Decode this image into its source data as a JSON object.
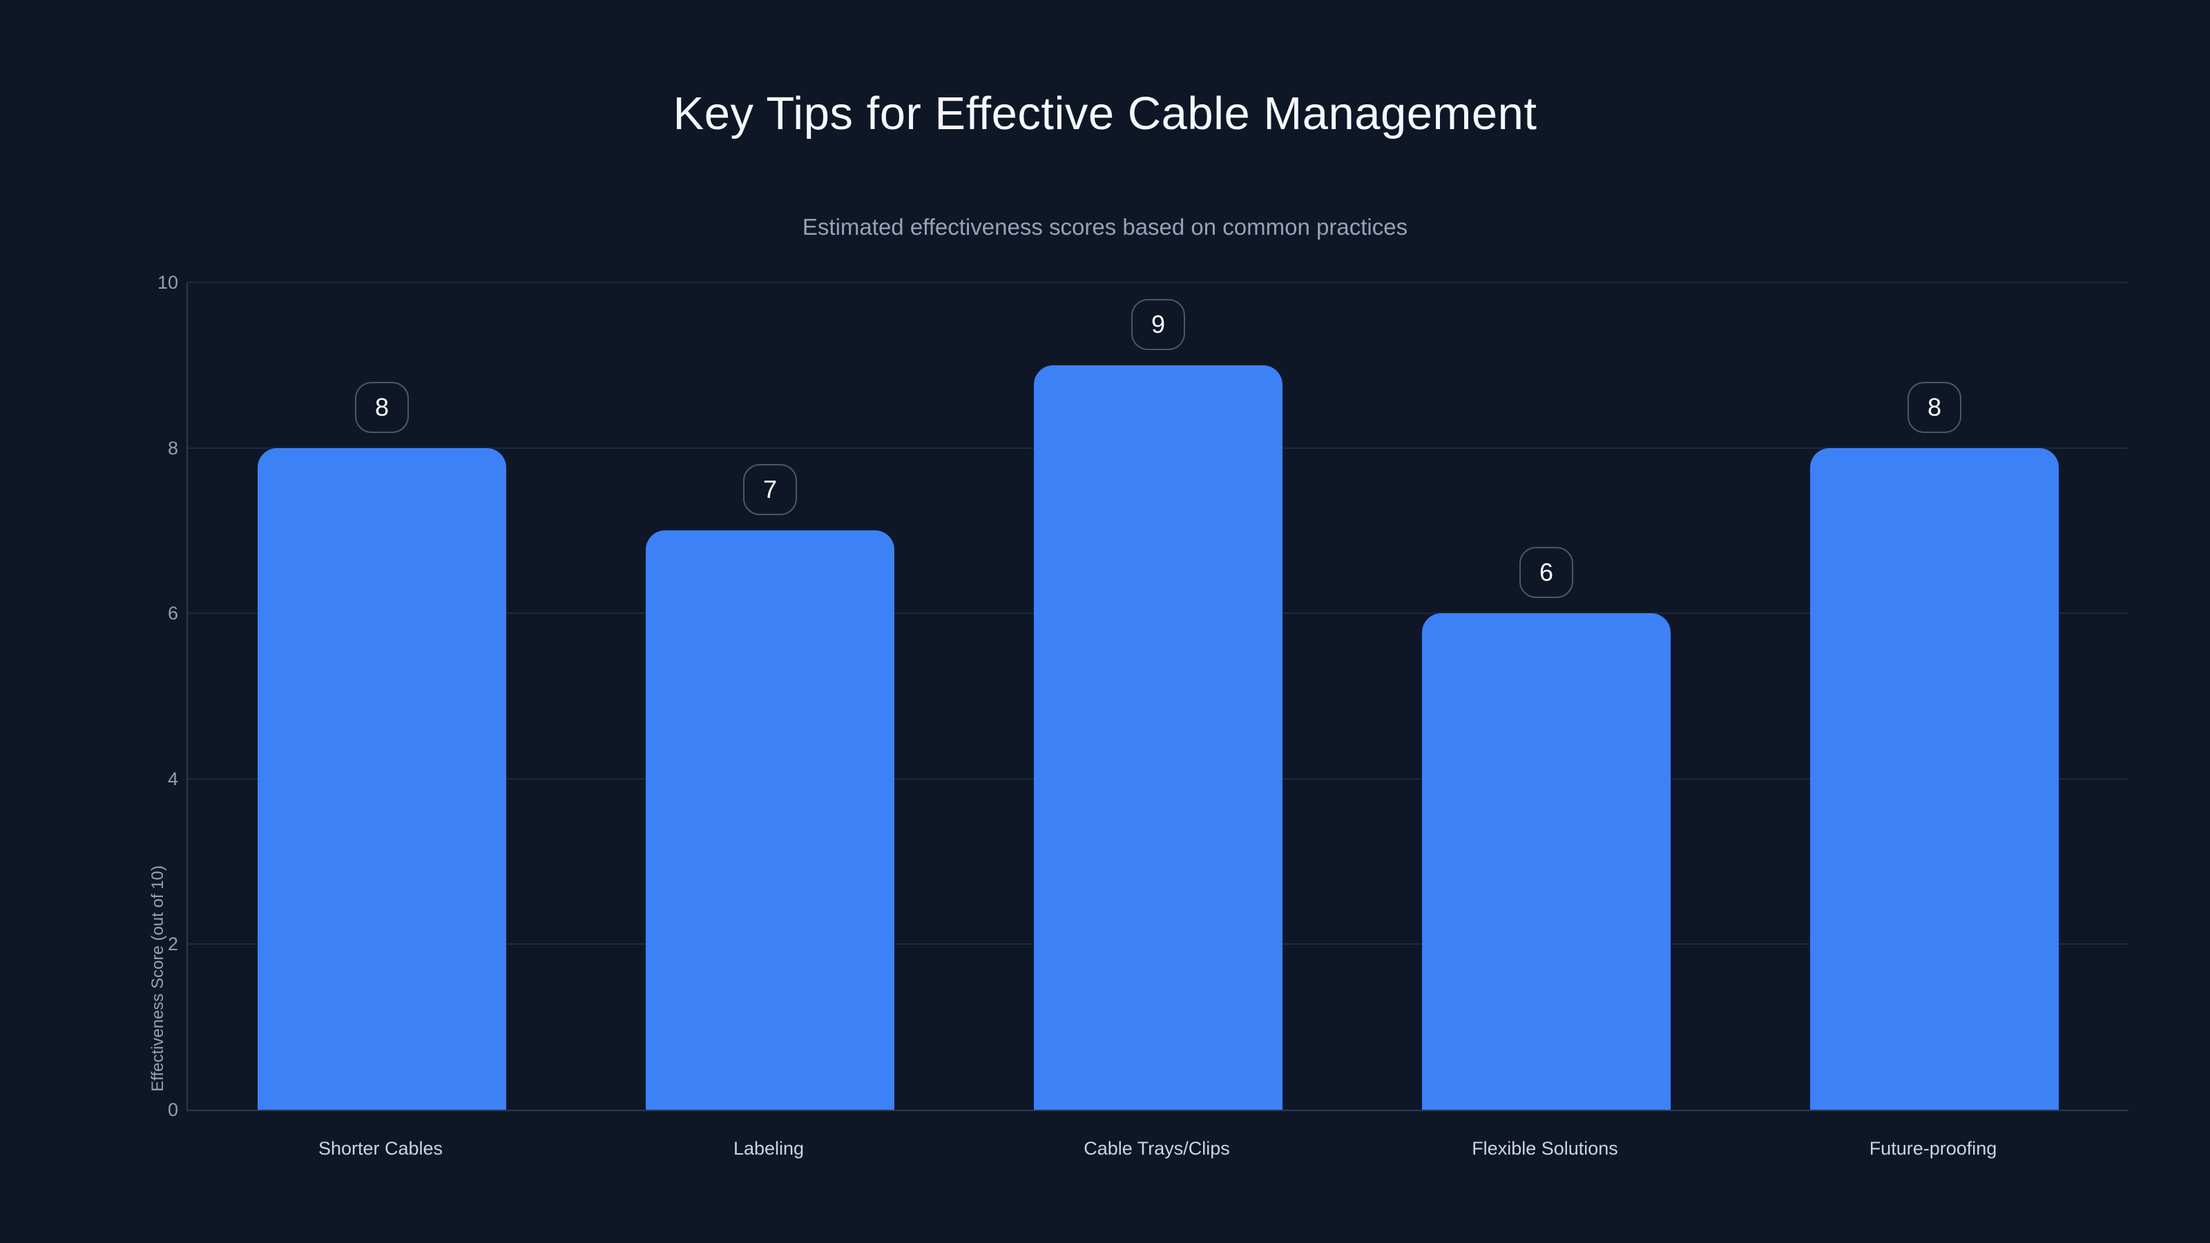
{
  "chart_data": {
    "type": "bar",
    "title": "Key Tips for Effective Cable Management",
    "subtitle": "Estimated effectiveness scores based on common practices",
    "ylabel": "Effectiveness Score (out of 10)",
    "xlabel": "",
    "categories": [
      "Shorter Cables",
      "Labeling",
      "Cable Trays/Clips",
      "Flexible Solutions",
      "Future-proofing"
    ],
    "values": [
      8,
      7,
      9,
      6,
      8
    ],
    "ylim": [
      0,
      10
    ],
    "yticks": [
      0,
      2,
      4,
      6,
      8,
      10
    ],
    "grid": true,
    "legend": false,
    "value_labels": "rounded badge above each bar",
    "colors": {
      "background": "#0f1727",
      "bar": "#3d81f6",
      "gridline": "#1d2940",
      "axis_border": "#2b3a55",
      "title_text": "#f5f8fc",
      "subtitle_text": "#94a3b8",
      "tick_text": "#8fa0b5",
      "category_text": "#cbd5e1",
      "badge_border": "#49566b",
      "badge_text": "#ffffff"
    }
  }
}
